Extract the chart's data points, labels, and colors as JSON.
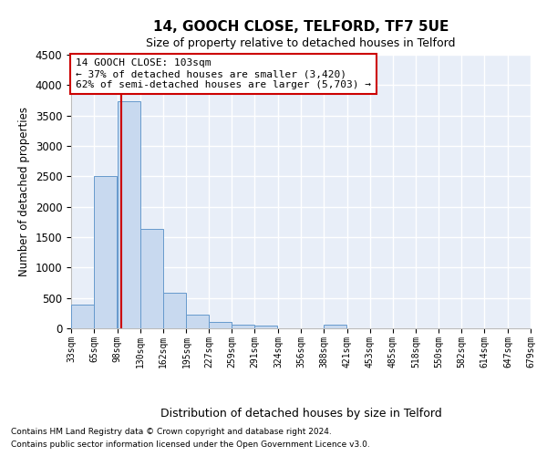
{
  "title": "14, GOOCH CLOSE, TELFORD, TF7 5UE",
  "subtitle": "Size of property relative to detached houses in Telford",
  "xlabel": "Distribution of detached houses by size in Telford",
  "ylabel": "Number of detached properties",
  "footnote1": "Contains HM Land Registry data © Crown copyright and database right 2024.",
  "footnote2": "Contains public sector information licensed under the Open Government Licence v3.0.",
  "annotation_line1": "14 GOOCH CLOSE: 103sqm",
  "annotation_line2": "← 37% of detached houses are smaller (3,420)",
  "annotation_line3": "62% of semi-detached houses are larger (5,703) →",
  "bar_color": "#c8d9ef",
  "bar_edge_color": "#6699cc",
  "vline_color": "#cc0000",
  "background_color": "#e8eef8",
  "grid_color": "#ffffff",
  "bin_edges": [
    33,
    65,
    98,
    130,
    162,
    195,
    227,
    259,
    291,
    324,
    356,
    388,
    421,
    453,
    485,
    518,
    550,
    582,
    614,
    647,
    679
  ],
  "bin_labels": [
    "33sqm",
    "65sqm",
    "98sqm",
    "130sqm",
    "162sqm",
    "195sqm",
    "227sqm",
    "259sqm",
    "291sqm",
    "324sqm",
    "356sqm",
    "388sqm",
    "421sqm",
    "453sqm",
    "485sqm",
    "518sqm",
    "550sqm",
    "582sqm",
    "614sqm",
    "647sqm",
    "679sqm"
  ],
  "bar_values": [
    390,
    2500,
    3730,
    1640,
    580,
    220,
    110,
    60,
    45,
    0,
    0,
    55,
    0,
    0,
    0,
    0,
    0,
    0,
    0,
    0
  ],
  "property_size": 103,
  "ylim": [
    0,
    4500
  ],
  "yticks": [
    0,
    500,
    1000,
    1500,
    2000,
    2500,
    3000,
    3500,
    4000,
    4500
  ]
}
